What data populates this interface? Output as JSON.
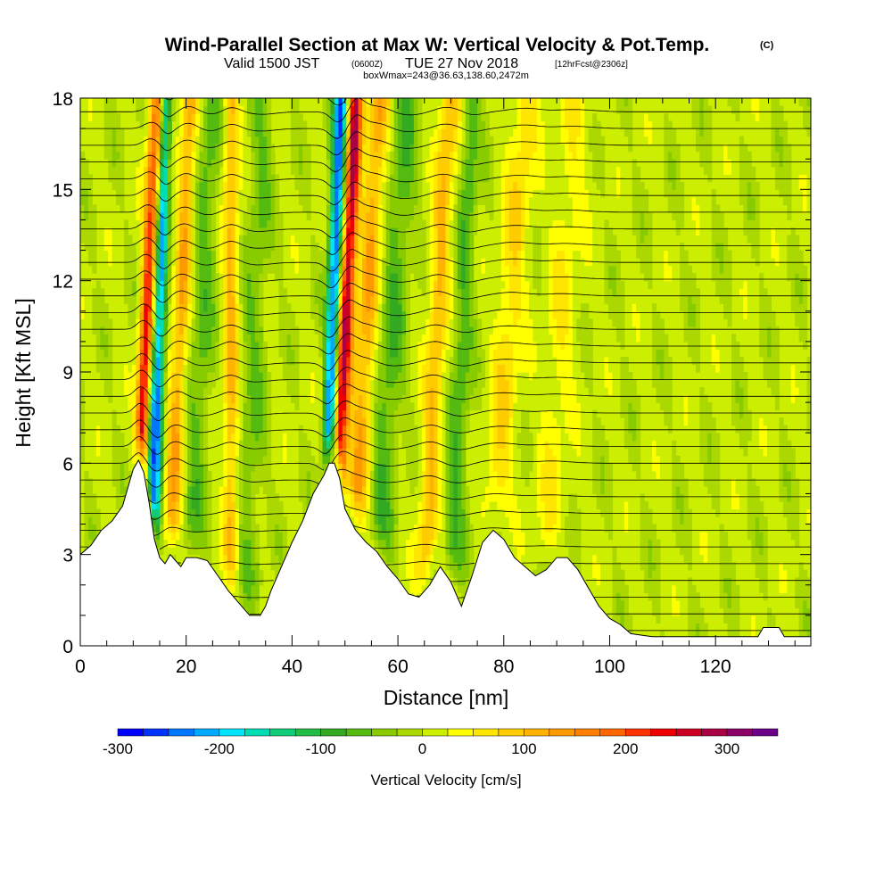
{
  "header": {
    "title": "Wind-Parallel Section at Max W: Vertical Velocity & Pot.Temp.",
    "copyright": "(C)",
    "valid_prefix": "Valid 1500 JST",
    "valid_utc": "(0600Z)",
    "valid_date": "TUE 27 Nov 2018",
    "forecast": "[12hrFcst@2306z]",
    "boxwmax": "boxWmax=243@36.63,138.60,2472m"
  },
  "chart_data": {
    "type": "heatmap",
    "xlabel": "Distance [nm]",
    "ylabel": "Height [Kft MSL]",
    "xlim": [
      0,
      138
    ],
    "ylim": [
      0,
      18
    ],
    "x_ticks": [
      0,
      20,
      40,
      60,
      80,
      100,
      120
    ],
    "x_tick_labels": [
      "0",
      "20",
      "40",
      "60",
      "80",
      "100",
      "120"
    ],
    "y_ticks": [
      0,
      3,
      6,
      9,
      12,
      15,
      18
    ],
    "y_tick_labels": [
      "0",
      "3",
      "6",
      "9",
      "12",
      "15",
      "18"
    ],
    "terrain_kft": [
      [
        0,
        3.0
      ],
      [
        2,
        3.3
      ],
      [
        4,
        3.8
      ],
      [
        6,
        4.1
      ],
      [
        8,
        4.6
      ],
      [
        9,
        5.2
      ],
      [
        10,
        5.8
      ],
      [
        11,
        6.1
      ],
      [
        12,
        5.7
      ],
      [
        13,
        4.7
      ],
      [
        14,
        3.5
      ],
      [
        15,
        2.9
      ],
      [
        16,
        2.7
      ],
      [
        17,
        3.0
      ],
      [
        18,
        2.8
      ],
      [
        19,
        2.6
      ],
      [
        20,
        2.9
      ],
      [
        22,
        2.9
      ],
      [
        24,
        2.8
      ],
      [
        26,
        2.3
      ],
      [
        28,
        1.8
      ],
      [
        30,
        1.4
      ],
      [
        32,
        1.0
      ],
      [
        34,
        1.0
      ],
      [
        35,
        1.3
      ],
      [
        36,
        1.8
      ],
      [
        38,
        2.6
      ],
      [
        40,
        3.4
      ],
      [
        42,
        4.1
      ],
      [
        44,
        5.0
      ],
      [
        46,
        5.6
      ],
      [
        47,
        6.0
      ],
      [
        48,
        6.0
      ],
      [
        49,
        5.5
      ],
      [
        50,
        4.5
      ],
      [
        52,
        3.8
      ],
      [
        54,
        3.4
      ],
      [
        56,
        3.1
      ],
      [
        58,
        2.6
      ],
      [
        60,
        2.2
      ],
      [
        62,
        1.7
      ],
      [
        64,
        1.6
      ],
      [
        66,
        2.0
      ],
      [
        68,
        2.6
      ],
      [
        70,
        2.1
      ],
      [
        72,
        1.3
      ],
      [
        74,
        2.3
      ],
      [
        76,
        3.4
      ],
      [
        78,
        3.8
      ],
      [
        80,
        3.5
      ],
      [
        82,
        2.9
      ],
      [
        84,
        2.6
      ],
      [
        86,
        2.3
      ],
      [
        88,
        2.5
      ],
      [
        90,
        2.9
      ],
      [
        92,
        2.9
      ],
      [
        94,
        2.5
      ],
      [
        96,
        1.9
      ],
      [
        98,
        1.3
      ],
      [
        100,
        0.9
      ],
      [
        102,
        0.7
      ],
      [
        104,
        0.4
      ],
      [
        108,
        0.3
      ],
      [
        112,
        0.3
      ],
      [
        116,
        0.3
      ],
      [
        120,
        0.3
      ],
      [
        124,
        0.3
      ],
      [
        128,
        0.3
      ],
      [
        129,
        0.6
      ],
      [
        132,
        0.6
      ],
      [
        133,
        0.3
      ],
      [
        138,
        0.3
      ]
    ],
    "updraft_bands": [
      {
        "x_base": 11.5,
        "tilt": 0.22,
        "width": 1.2,
        "amp": 280
      },
      {
        "x_base": 13.5,
        "tilt": 0.15,
        "width": 1.3,
        "amp": -260
      },
      {
        "x_base": 17.0,
        "tilt": 0.25,
        "width": 1.6,
        "amp": 120
      },
      {
        "x_base": 21.0,
        "tilt": 0.25,
        "width": 2.2,
        "amp": -60
      },
      {
        "x_base": 28.5,
        "tilt": 0.0,
        "width": 1.5,
        "amp": 110
      },
      {
        "x_base": 31.0,
        "tilt": 0.2,
        "width": 2.5,
        "amp": -50
      },
      {
        "x_base": 48.5,
        "tilt": 0.25,
        "width": 1.3,
        "amp": 290
      },
      {
        "x_base": 47.0,
        "tilt": 0.18,
        "width": 1.3,
        "amp": -260
      },
      {
        "x_base": 52.0,
        "tilt": 0.3,
        "width": 2.0,
        "amp": 120
      },
      {
        "x_base": 56.0,
        "tilt": 0.35,
        "width": 2.5,
        "amp": -70
      },
      {
        "x_base": 65.0,
        "tilt": 0.3,
        "width": 2.0,
        "amp": 100
      },
      {
        "x_base": 70.0,
        "tilt": 0.25,
        "width": 2.0,
        "amp": -70
      },
      {
        "x_base": 78.0,
        "tilt": 0.4,
        "width": 2.5,
        "amp": 70
      },
      {
        "x_base": 88.0,
        "tilt": 0.35,
        "width": 3.0,
        "amp": 45
      }
    ],
    "theta_contour_count": 34,
    "colorbar": {
      "title": "Vertical Velocity [cm/s]",
      "min": -300,
      "max": 350,
      "step": 25,
      "tick_values": [
        -300,
        -200,
        -100,
        0,
        100,
        200,
        300
      ],
      "tick_labels": [
        "-300",
        "-200",
        "-100",
        "0",
        "100",
        "200",
        "300"
      ],
      "colors": [
        "#0000ff",
        "#0033ff",
        "#0077ff",
        "#00aaff",
        "#00e4ff",
        "#00ddb4",
        "#11cc77",
        "#22bb44",
        "#33aa22",
        "#55bb11",
        "#88cc00",
        "#aad800",
        "#ccee00",
        "#ffff00",
        "#ffe600",
        "#ffcc00",
        "#ffb300",
        "#ff9900",
        "#ff7f00",
        "#ff6600",
        "#ff3300",
        "#ee0000",
        "#cc0022",
        "#aa0044",
        "#8a0066",
        "#6a0088"
      ]
    }
  }
}
